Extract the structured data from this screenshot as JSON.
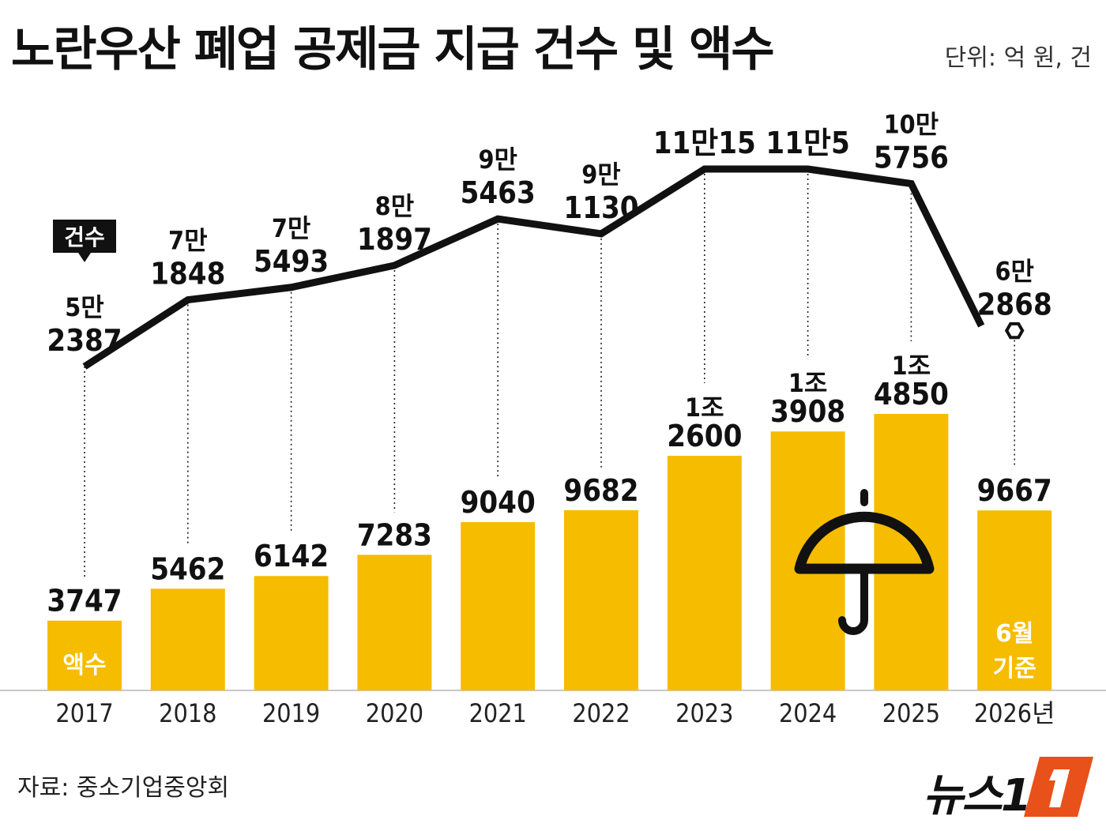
{
  "title": "노란우산 폐업 공제금 지급 건수 및 액수",
  "unit": "단위: 억 원, 건",
  "source": "자료: 중소기업중앙회",
  "logo": "뉴스1",
  "icon": "umbrella-icon",
  "colors": {
    "bar": "#F6BC00",
    "line": "#111111",
    "text": "#111111"
  },
  "chart_data": {
    "type": "bar",
    "categories": [
      "2017",
      "2018",
      "2019",
      "2020",
      "2021",
      "2022",
      "2023",
      "2024",
      "2025",
      "2026년"
    ],
    "bar_series": {
      "label": "액수",
      "values": [
        3747,
        5462,
        6142,
        7283,
        9040,
        9682,
        12600,
        13908,
        14850,
        9667
      ],
      "data_labels": [
        [
          "3747"
        ],
        [
          "5462"
        ],
        [
          "6142"
        ],
        [
          "7283"
        ],
        [
          "9040"
        ],
        [
          "9682"
        ],
        [
          "1조",
          "2600"
        ],
        [
          "1조",
          "3908"
        ],
        [
          "1조",
          "4850"
        ],
        [
          "9667"
        ]
      ]
    },
    "line_series": {
      "label": "건수",
      "values": [
        52387,
        71848,
        75493,
        81897,
        95463,
        91130,
        110015,
        110005,
        105756,
        62868
      ],
      "data_labels": [
        [
          "5만",
          "2387"
        ],
        [
          "7만",
          "1848"
        ],
        [
          "7만",
          "5493"
        ],
        [
          "8만",
          "1897"
        ],
        [
          "9만",
          "5463"
        ],
        [
          "9만",
          "1130"
        ],
        [
          "11만15"
        ],
        [
          "11만5"
        ],
        [
          "10만",
          "5756"
        ],
        [
          "6만",
          "2868"
        ]
      ]
    },
    "note": [
      "6월",
      "기준"
    ]
  }
}
